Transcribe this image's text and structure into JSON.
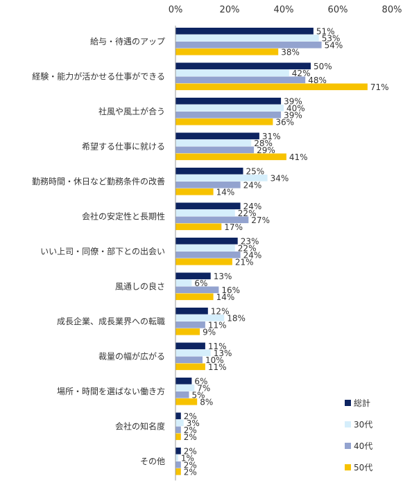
{
  "chart_data": {
    "type": "bar",
    "orientation": "horizontal",
    "xlim": [
      0,
      80
    ],
    "x_ticks": [
      "0%",
      "20%",
      "40%",
      "60%",
      "80%"
    ],
    "categories": [
      "給与・待遇のアップ",
      "経験・能力が活かせる仕事ができる",
      "社風や風土が合う",
      "希望する仕事に就ける",
      "勤務時間・休日など勤務条件の改善",
      "会社の安定性と長期性",
      "いい上司・同僚・部下との出会い",
      "風通しの良さ",
      "成長企業、成長業界への転職",
      "裁量の幅が広がる",
      "場所・時間を選ばない働き方",
      "会社の知名度",
      "その他"
    ],
    "series": [
      {
        "name": "総計",
        "color": "#0d2461",
        "values": [
          51,
          50,
          39,
          31,
          25,
          24,
          23,
          13,
          12,
          11,
          6,
          2,
          2
        ]
      },
      {
        "name": "30代",
        "color": "#d5eefb",
        "values": [
          53,
          42,
          40,
          28,
          34,
          22,
          22,
          6,
          18,
          13,
          7,
          3,
          1
        ]
      },
      {
        "name": "40代",
        "color": "#93a3cf",
        "values": [
          54,
          48,
          39,
          29,
          24,
          27,
          24,
          16,
          11,
          10,
          5,
          2,
          2
        ]
      },
      {
        "name": "50代",
        "color": "#f7c200",
        "values": [
          38,
          71,
          36,
          41,
          14,
          17,
          21,
          14,
          9,
          11,
          8,
          2,
          2
        ]
      }
    ],
    "value_suffix": "%",
    "grid": false,
    "legend_position": "bottom-right"
  }
}
